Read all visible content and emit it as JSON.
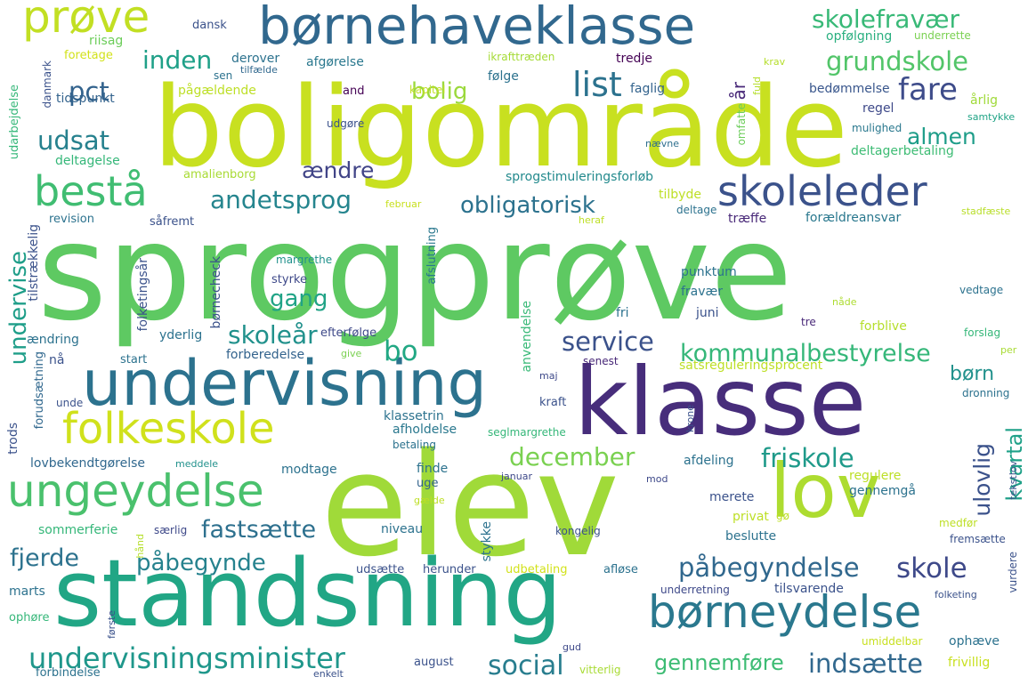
{
  "words": [
    {
      "text": "sprogprøve",
      "color": "#5ec962"
    },
    {
      "text": "boligområde",
      "color": "#c8e020"
    },
    {
      "text": "elev",
      "color": "#a0da39"
    },
    {
      "text": "klasse",
      "color": "#472d7b"
    },
    {
      "text": "standsning",
      "color": "#21a685"
    },
    {
      "text": "undervisning",
      "color": "#2c728e"
    },
    {
      "text": "børnehaveklasse",
      "color": "#31688e"
    },
    {
      "text": "lov",
      "color": "#addc30"
    },
    {
      "text": "ungeydelse",
      "color": "#4ac16d"
    },
    {
      "text": "folkeskole",
      "color": "#d0e11c"
    },
    {
      "text": "børneydelse",
      "color": "#2a788e"
    },
    {
      "text": "skoleleder",
      "color": "#3b528b"
    },
    {
      "text": "bestå",
      "color": "#40bd72"
    },
    {
      "text": "prøve",
      "color": "#c2df23"
    },
    {
      "text": "undervisningsminister",
      "color": "#1f978b"
    },
    {
      "text": "påbegyndelse",
      "color": "#31688e"
    },
    {
      "text": "fjerde",
      "color": "#2c728e"
    },
    {
      "text": "påbegynde",
      "color": "#26828e"
    },
    {
      "text": "skole",
      "color": "#3e4989"
    },
    {
      "text": "kommunalbestyrelse",
      "color": "#35b779"
    },
    {
      "text": "grundskole",
      "color": "#52c569"
    },
    {
      "text": "skolefravær",
      "color": "#38b977"
    },
    {
      "text": "obligatorisk",
      "color": "#2c728e"
    },
    {
      "text": "andetsprog",
      "color": "#25858e"
    },
    {
      "text": "fastsætte",
      "color": "#2d708e"
    },
    {
      "text": "social",
      "color": "#287d8e"
    },
    {
      "text": "gennemføre",
      "color": "#3dbc74"
    },
    {
      "text": "indsætte",
      "color": "#31688e"
    },
    {
      "text": "december",
      "color": "#7ad151"
    },
    {
      "text": "friskole",
      "color": "#1f9a8a"
    },
    {
      "text": "service",
      "color": "#3b528b"
    },
    {
      "text": "skoleår",
      "color": "#21918c"
    },
    {
      "text": "udsat",
      "color": "#26818e"
    },
    {
      "text": "inden",
      "color": "#1fa088"
    },
    {
      "text": "bolig",
      "color": "#9bd93c"
    },
    {
      "text": "list",
      "color": "#2c728e"
    },
    {
      "text": "fare",
      "color": "#3e4c8a"
    },
    {
      "text": "almen",
      "color": "#1e9d89"
    },
    {
      "text": "pct",
      "color": "#33638d"
    },
    {
      "text": "ændre",
      "color": "#414487"
    },
    {
      "text": "gang",
      "color": "#20a386"
    },
    {
      "text": "bo",
      "color": "#22a884"
    },
    {
      "text": "børn",
      "color": "#21918c"
    },
    {
      "text": "kvartal",
      "color": "#1fa188"
    },
    {
      "text": "ulovlig",
      "color": "#3b528b"
    },
    {
      "text": "undervise",
      "color": "#1f9e89"
    },
    {
      "text": "år",
      "color": "#482878"
    },
    {
      "text": "dansk",
      "color": "#3b528b"
    },
    {
      "text": "riisag",
      "color": "#6ccd5a"
    },
    {
      "text": "foretage",
      "color": "#d2e21b"
    },
    {
      "text": "derover",
      "color": "#2c728e"
    },
    {
      "text": "tilfælde",
      "color": "#31688e"
    },
    {
      "text": "afgørelse",
      "color": "#2a788e"
    },
    {
      "text": "ikrafttræden",
      "color": "#a5db36"
    },
    {
      "text": "opfølgning",
      "color": "#29af7f"
    },
    {
      "text": "underrette",
      "color": "#7ad151"
    },
    {
      "text": "tredje",
      "color": "#440154"
    },
    {
      "text": "krav",
      "color": "#b5de2b"
    },
    {
      "text": "følge",
      "color": "#2c728e"
    },
    {
      "text": "faglig",
      "color": "#33638d"
    },
    {
      "text": "fuld",
      "color": "#b5de2b"
    },
    {
      "text": "årlig",
      "color": "#a0da39"
    },
    {
      "text": "pågældende",
      "color": "#bddf26"
    },
    {
      "text": "kapitel",
      "color": "#c0df25"
    },
    {
      "text": "sen",
      "color": "#2c728e"
    },
    {
      "text": "and",
      "color": "#440154"
    },
    {
      "text": "tidspunkt",
      "color": "#33638d"
    },
    {
      "text": "udgøre",
      "color": "#3b528b"
    },
    {
      "text": "bedømmelse",
      "color": "#39568c"
    },
    {
      "text": "regel",
      "color": "#3e4989"
    },
    {
      "text": "samtykke",
      "color": "#20a486"
    },
    {
      "text": "mulighed",
      "color": "#2a788e"
    },
    {
      "text": "omfatte",
      "color": "#6ccd5a"
    },
    {
      "text": "nævne",
      "color": "#2e6f8e"
    },
    {
      "text": "deltagelse",
      "color": "#35b779"
    },
    {
      "text": "deltagerbetaling",
      "color": "#3dbc74"
    },
    {
      "text": "amalienborg",
      "color": "#a8db34"
    },
    {
      "text": "sprogstimuleringsforløb",
      "color": "#238a8d"
    },
    {
      "text": "stadfæste",
      "color": "#b8de29"
    },
    {
      "text": "revision",
      "color": "#2c728e"
    },
    {
      "text": "februar",
      "color": "#c8e020"
    },
    {
      "text": "tilbyde",
      "color": "#bddf26"
    },
    {
      "text": "deltage",
      "color": "#2c728e"
    },
    {
      "text": "såfremt",
      "color": "#3b528b"
    },
    {
      "text": "træffe",
      "color": "#482878"
    },
    {
      "text": "forældreansvar",
      "color": "#2a788e"
    },
    {
      "text": "heraf",
      "color": "#bddf26"
    },
    {
      "text": "udarbejdelse",
      "color": "#35b779"
    },
    {
      "text": "danmark",
      "color": "#3b528b"
    },
    {
      "text": "margrethe",
      "color": "#21918c"
    },
    {
      "text": "børnecheck",
      "color": "#3b528b"
    },
    {
      "text": "styrke",
      "color": "#3e4989"
    },
    {
      "text": "afslutning",
      "color": "#2a788e"
    },
    {
      "text": "punktum",
      "color": "#2c728e"
    },
    {
      "text": "folketingsår",
      "color": "#3b528b"
    },
    {
      "text": "fravær",
      "color": "#2c728e"
    },
    {
      "text": "fri",
      "color": "#2c728e"
    },
    {
      "text": "juni",
      "color": "#3b528b"
    },
    {
      "text": "nåde",
      "color": "#addc30"
    },
    {
      "text": "tre",
      "color": "#482878"
    },
    {
      "text": "vedtage",
      "color": "#2c728e"
    },
    {
      "text": "forblive",
      "color": "#b5de2b"
    },
    {
      "text": "forslag",
      "color": "#35b779"
    },
    {
      "text": "yderlig",
      "color": "#2c728e"
    },
    {
      "text": "efterfølge",
      "color": "#3e4989"
    },
    {
      "text": "tilstrækkelig",
      "color": "#3b528b"
    },
    {
      "text": "ændring",
      "color": "#2c728e"
    },
    {
      "text": "nå",
      "color": "#3b528b"
    },
    {
      "text": "start",
      "color": "#2c728e"
    },
    {
      "text": "forberedelse",
      "color": "#33638d"
    },
    {
      "text": "give",
      "color": "#7ad151"
    },
    {
      "text": "anvendelse",
      "color": "#38b977"
    },
    {
      "text": "senest",
      "color": "#482878"
    },
    {
      "text": "satsreguleringsprocent",
      "color": "#bddf26"
    },
    {
      "text": "per",
      "color": "#a8db34"
    },
    {
      "text": "maj",
      "color": "#3e4989"
    },
    {
      "text": "kraft",
      "color": "#3b528b"
    },
    {
      "text": "dronning",
      "color": "#2c728e"
    },
    {
      "text": "forudsætning",
      "color": "#31688e"
    },
    {
      "text": "unde",
      "color": "#3b528b"
    },
    {
      "text": "klassetrin",
      "color": "#2c728e"
    },
    {
      "text": "afholdelse",
      "color": "#2a788e"
    },
    {
      "text": "betaling",
      "color": "#2c728e"
    },
    {
      "text": "seglmargrethe",
      "color": "#35b779"
    },
    {
      "text": "krone",
      "color": "#3b528b"
    },
    {
      "text": "trods",
      "color": "#3b528b"
    },
    {
      "text": "lovbekendtgørelse",
      "color": "#31688e"
    },
    {
      "text": "meddele",
      "color": "#21918c"
    },
    {
      "text": "finde",
      "color": "#2c728e"
    },
    {
      "text": "afdeling",
      "color": "#2c728e"
    },
    {
      "text": "tekstlov",
      "color": "#3b528b"
    },
    {
      "text": "uge",
      "color": "#33638d"
    },
    {
      "text": "januar",
      "color": "#3e4989"
    },
    {
      "text": "mod",
      "color": "#3e4989"
    },
    {
      "text": "regulere",
      "color": "#bddf26"
    },
    {
      "text": "modtage",
      "color": "#2c728e"
    },
    {
      "text": "merete",
      "color": "#3b528b"
    },
    {
      "text": "gennemgå",
      "color": "#2c728e"
    },
    {
      "text": "gælde",
      "color": "#bddf26"
    },
    {
      "text": "privat",
      "color": "#bddf26"
    },
    {
      "text": "gø",
      "color": "#bddf26"
    },
    {
      "text": "medfør",
      "color": "#bddf26"
    },
    {
      "text": "sommerferie",
      "color": "#35b779"
    },
    {
      "text": "særlig",
      "color": "#3e4989"
    },
    {
      "text": "niveau",
      "color": "#2c728e"
    },
    {
      "text": "stykke",
      "color": "#2c728e"
    },
    {
      "text": "kongelig",
      "color": "#3b528b"
    },
    {
      "text": "beslutte",
      "color": "#2c728e"
    },
    {
      "text": "fremsætte",
      "color": "#3b528b"
    },
    {
      "text": "hånd",
      "color": "#b5de2b"
    },
    {
      "text": "udsætte",
      "color": "#3b528b"
    },
    {
      "text": "herunder",
      "color": "#3b528b"
    },
    {
      "text": "udbetaling",
      "color": "#d2e21b"
    },
    {
      "text": "afløse",
      "color": "#2c728e"
    },
    {
      "text": "vurdere",
      "color": "#3b528b"
    },
    {
      "text": "marts",
      "color": "#2c728e"
    },
    {
      "text": "underretning",
      "color": "#3e4989"
    },
    {
      "text": "tilsvarende",
      "color": "#3b528b"
    },
    {
      "text": "folketing",
      "color": "#3b528b"
    },
    {
      "text": "ophøre",
      "color": "#35b779"
    },
    {
      "text": "første",
      "color": "#3b528b"
    },
    {
      "text": "umiddelbar",
      "color": "#c8e020"
    },
    {
      "text": "ophæve",
      "color": "#2c728e"
    },
    {
      "text": "august",
      "color": "#3b528b"
    },
    {
      "text": "gud",
      "color": "#3e4989"
    },
    {
      "text": "vitterlig",
      "color": "#a8db34"
    },
    {
      "text": "frivillig",
      "color": "#c8e020"
    },
    {
      "text": "forbindelse",
      "color": "#2c728e"
    },
    {
      "text": "enkelt",
      "color": "#3b528b"
    }
  ]
}
